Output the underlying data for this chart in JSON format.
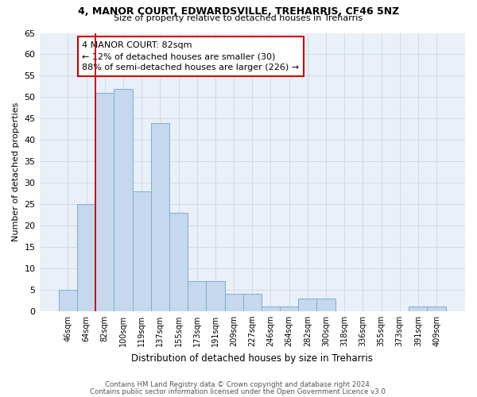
{
  "title1": "4, MANOR COURT, EDWARDSVILLE, TREHARRIS, CF46 5NZ",
  "title2": "Size of property relative to detached houses in Treharris",
  "xlabel": "Distribution of detached houses by size in Treharris",
  "ylabel": "Number of detached properties",
  "categories": [
    "46sqm",
    "64sqm",
    "82sqm",
    "100sqm",
    "119sqm",
    "137sqm",
    "155sqm",
    "173sqm",
    "191sqm",
    "209sqm",
    "227sqm",
    "246sqm",
    "264sqm",
    "282sqm",
    "300sqm",
    "318sqm",
    "336sqm",
    "355sqm",
    "373sqm",
    "391sqm",
    "409sqm"
  ],
  "values": [
    5,
    25,
    51,
    52,
    28,
    44,
    23,
    7,
    7,
    4,
    4,
    1,
    1,
    3,
    3,
    0,
    0,
    0,
    0,
    1,
    1
  ],
  "bar_color": "#c5d8ed",
  "bar_edge_color": "#7aaed6",
  "property_line_bar_index": 2,
  "annotation_text": "4 MANOR COURT: 82sqm\n← 12% of detached houses are smaller (30)\n88% of semi-detached houses are larger (226) →",
  "annotation_box_color": "#ffffff",
  "annotation_border_color": "#cc0000",
  "property_line_color": "#cc0000",
  "ylim": [
    0,
    65
  ],
  "yticks": [
    0,
    5,
    10,
    15,
    20,
    25,
    30,
    35,
    40,
    45,
    50,
    55,
    60,
    65
  ],
  "grid_color": "#c8d8e8",
  "footer1": "Contains HM Land Registry data © Crown copyright and database right 2024.",
  "footer2": "Contains public sector information licensed under the Open Government Licence v3.0.",
  "bg_color": "#eaf0f8"
}
